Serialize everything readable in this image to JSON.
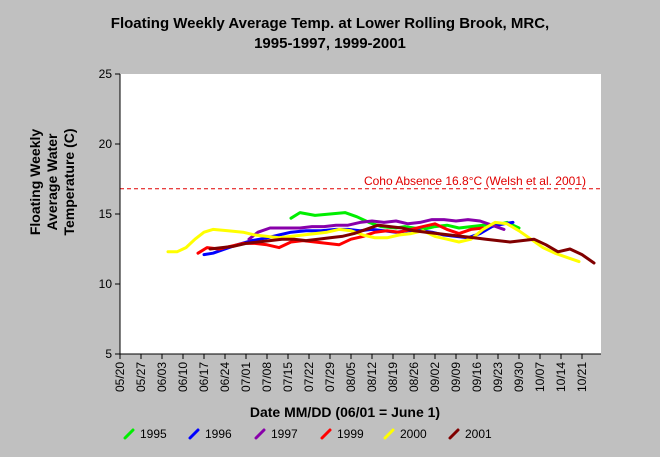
{
  "colors": {
    "background": "#c0c0c0",
    "plot_background": "#ffffff",
    "reference_line": "#e00000",
    "series": {
      "1995": "#00ee00",
      "1996": "#0000ff",
      "1997": "#8800aa",
      "1999": "#ff0000",
      "2000": "#ffff00",
      "2001": "#800000"
    }
  },
  "chart_data": {
    "type": "line",
    "title": "Floating Weekly Average Temp. at Lower Rolling Brook, MRC,",
    "subtitle": "1995-1997, 1999-2001",
    "xlabel": "Date MM/DD (06/01 = June 1)",
    "ylabel": [
      "Floating Weekly",
      "Average Water",
      "Temperature (C)"
    ],
    "x_units": "days since 05/20",
    "xlim": [
      0,
      161
    ],
    "ylim": [
      5,
      25
    ],
    "y_ticks": [
      5,
      10,
      15,
      20,
      25
    ],
    "x_tick_labels": [
      "05/20",
      "05/27",
      "06/03",
      "06/10",
      "06/17",
      "06/24",
      "07/01",
      "07/08",
      "07/15",
      "07/22",
      "07/29",
      "08/05",
      "08/12",
      "08/19",
      "08/26",
      "09/02",
      "09/09",
      "09/16",
      "09/23",
      "09/30",
      "10/07",
      "10/14",
      "10/21"
    ],
    "grid": false,
    "legend_position": "bottom",
    "reference_line": {
      "y": 16.8,
      "label": "Coho Absence 16.8°C (Welsh et al. 2001)"
    },
    "series": [
      {
        "name": "1995",
        "x": [
          57,
          60,
          65,
          70,
          75,
          79,
          83,
          87,
          92,
          95,
          98,
          101,
          105,
          109,
          113,
          117,
          121,
          125,
          129,
          133
        ],
        "values": [
          14.7,
          15.1,
          14.9,
          15.0,
          15.1,
          14.8,
          14.4,
          14.1,
          14.0,
          14.1,
          14.0,
          13.9,
          14.1,
          14.2,
          14.0,
          14.1,
          14.2,
          14.2,
          14.4,
          14.0
        ]
      },
      {
        "name": "1996",
        "x": [
          28,
          31,
          35,
          39,
          44,
          49,
          53,
          57,
          62,
          67,
          72,
          76,
          80,
          84,
          88,
          92,
          96,
          100,
          104,
          108,
          112,
          116,
          120,
          124,
          128,
          131
        ],
        "values": [
          12.1,
          12.2,
          12.5,
          12.8,
          13.1,
          13.3,
          13.5,
          13.7,
          13.8,
          13.8,
          13.9,
          13.9,
          13.8,
          13.9,
          13.8,
          13.7,
          13.8,
          13.8,
          13.7,
          13.5,
          13.4,
          13.3,
          13.6,
          14.1,
          14.3,
          14.4
        ]
      },
      {
        "name": "1997",
        "x": [
          43,
          46,
          50,
          55,
          60,
          64,
          68,
          72,
          76,
          80,
          84,
          88,
          92,
          96,
          100,
          104,
          108,
          112,
          116,
          120,
          124,
          128
        ],
        "values": [
          13.2,
          13.7,
          14.0,
          14.0,
          14.0,
          14.1,
          14.1,
          14.2,
          14.2,
          14.4,
          14.5,
          14.4,
          14.5,
          14.3,
          14.4,
          14.6,
          14.6,
          14.5,
          14.6,
          14.5,
          14.2,
          13.9
        ]
      },
      {
        "name": "1999",
        "x": [
          26,
          29,
          33,
          37,
          41,
          45,
          49,
          53,
          57,
          61,
          65,
          69,
          73,
          77,
          81,
          85,
          89,
          93,
          97,
          101,
          105,
          109,
          113,
          117,
          121
        ],
        "values": [
          12.2,
          12.6,
          12.5,
          12.7,
          12.9,
          12.9,
          12.8,
          12.6,
          13.0,
          13.1,
          13.0,
          12.9,
          12.8,
          13.2,
          13.4,
          13.7,
          13.8,
          13.7,
          13.9,
          14.1,
          14.3,
          13.9,
          13.6,
          13.9,
          14.0
        ]
      },
      {
        "name": "2000",
        "x": [
          16,
          19,
          22,
          25,
          28,
          31,
          36,
          41,
          45,
          49,
          53,
          57,
          61,
          65,
          69,
          73,
          77,
          81,
          85,
          89,
          93,
          97,
          101,
          105,
          109,
          113,
          117,
          121,
          125,
          129,
          133,
          137,
          141,
          145,
          149,
          153
        ],
        "values": [
          12.3,
          12.3,
          12.6,
          13.2,
          13.7,
          13.9,
          13.8,
          13.7,
          13.5,
          13.4,
          13.3,
          13.4,
          13.5,
          13.6,
          13.7,
          13.9,
          13.8,
          13.5,
          13.3,
          13.3,
          13.5,
          13.6,
          13.8,
          13.4,
          13.2,
          13.0,
          13.2,
          13.9,
          14.4,
          14.3,
          13.8,
          13.2,
          12.6,
          12.2,
          11.9,
          11.6
        ]
      },
      {
        "name": "2001",
        "x": [
          30,
          34,
          38,
          42,
          46,
          50,
          54,
          58,
          62,
          66,
          70,
          74,
          78,
          82,
          86,
          90,
          94,
          98,
          102,
          106,
          110,
          114,
          118,
          122,
          126,
          130,
          134,
          138,
          142,
          146,
          150,
          154,
          158
        ],
        "values": [
          12.5,
          12.6,
          12.7,
          12.9,
          13.0,
          13.1,
          13.2,
          13.2,
          13.1,
          13.2,
          13.3,
          13.4,
          13.6,
          13.9,
          14.2,
          14.1,
          14.0,
          13.8,
          13.7,
          13.6,
          13.5,
          13.4,
          13.3,
          13.2,
          13.1,
          13.0,
          13.1,
          13.2,
          12.8,
          12.3,
          12.5,
          12.1,
          11.5
        ]
      }
    ]
  }
}
